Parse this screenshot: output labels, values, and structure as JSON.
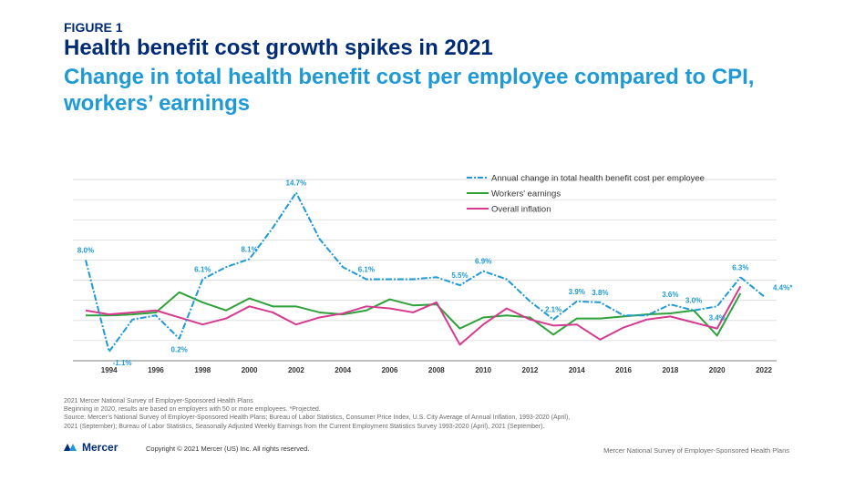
{
  "header": {
    "figure_label": "FIGURE 1",
    "title": "Health benefit cost growth spikes in 2021",
    "subtitle": "Change in total health benefit cost per employee compared to CPI, workers’ earnings"
  },
  "chart_data": {
    "type": "line",
    "ylim": [
      -2,
      17
    ],
    "xlim": [
      1993,
      2022
    ],
    "grid": true,
    "legend_position": "top-right",
    "x_ticks": [
      "1994",
      "1996",
      "1998",
      "2000",
      "2002",
      "2004",
      "2006",
      "2008",
      "2010",
      "2012",
      "2014",
      "2016",
      "2018",
      "2020",
      "2022"
    ],
    "series": [
      {
        "name": "Annual change in total health benefit cost per employee",
        "color": "#1f9ad6",
        "style": "dash-dot",
        "x": [
          1993,
          1994,
          1995,
          1996,
          1997,
          1998,
          1999,
          2000,
          2001,
          2002,
          2003,
          2004,
          2005,
          2006,
          2007,
          2008,
          2009,
          2010,
          2011,
          2012,
          2013,
          2014,
          2015,
          2016,
          2017,
          2018,
          2019,
          2020,
          2021
        ],
        "values": [
          8.0,
          -1.1,
          2.1,
          2.5,
          0.2,
          6.1,
          7.3,
          8.1,
          11.2,
          14.7,
          10.1,
          7.3,
          6.1,
          6.1,
          6.1,
          6.3,
          5.5,
          6.9,
          6.1,
          3.9,
          2.1,
          3.9,
          3.8,
          2.5,
          2.5,
          3.6,
          3.0,
          3.4,
          6.3
        ]
      },
      {
        "name": "Workers' earnings",
        "color": "#2ea13b",
        "style": "solid",
        "x": [
          1993,
          1994,
          1995,
          1996,
          1997,
          1998,
          1999,
          2000,
          2001,
          2002,
          2003,
          2004,
          2005,
          2006,
          2007,
          2008,
          2009,
          2010,
          2011,
          2012,
          2013,
          2014,
          2015,
          2016,
          2017,
          2018,
          2019,
          2020,
          2021
        ],
        "values": [
          2.5,
          2.5,
          2.6,
          2.8,
          4.8,
          3.8,
          3.0,
          4.2,
          3.4,
          3.4,
          2.8,
          2.6,
          3.0,
          4.1,
          3.5,
          3.6,
          1.2,
          2.3,
          2.5,
          2.3,
          0.6,
          2.2,
          2.2,
          2.4,
          2.6,
          2.7,
          3.0,
          0.5,
          4.7
        ]
      },
      {
        "name": "Overall inflation",
        "color": "#d63a8f",
        "style": "solid",
        "x": [
          1993,
          1994,
          1995,
          1996,
          1997,
          1998,
          1999,
          2000,
          2001,
          2002,
          2003,
          2004,
          2005,
          2006,
          2007,
          2008,
          2009,
          2010,
          2011,
          2012,
          2013,
          2014,
          2015,
          2016,
          2017,
          2018,
          2019,
          2020,
          2021
        ],
        "values": [
          3.0,
          2.6,
          2.8,
          3.0,
          2.3,
          1.6,
          2.2,
          3.4,
          2.8,
          1.6,
          2.3,
          2.7,
          3.4,
          3.2,
          2.8,
          3.8,
          -0.4,
          1.6,
          3.2,
          2.1,
          1.5,
          1.6,
          0.1,
          1.3,
          2.1,
          2.4,
          1.8,
          1.2,
          5.4
        ]
      }
    ],
    "projected": {
      "x": [
        2021,
        2022
      ],
      "values": [
        6.3,
        4.4
      ]
    },
    "annotations": [
      {
        "x": 1993,
        "y": 8.0,
        "text": "8.0%"
      },
      {
        "x": 1994,
        "y": -1.1,
        "text": "-1.1%"
      },
      {
        "x": 1997,
        "y": 0.2,
        "text": "0.2%"
      },
      {
        "x": 1998,
        "y": 6.1,
        "text": "6.1%"
      },
      {
        "x": 2000,
        "y": 8.1,
        "text": "8.1%"
      },
      {
        "x": 2002,
        "y": 14.7,
        "text": "14.7%"
      },
      {
        "x": 2005,
        "y": 6.1,
        "text": "6.1%"
      },
      {
        "x": 2009,
        "y": 5.5,
        "text": "5.5%"
      },
      {
        "x": 2010,
        "y": 6.9,
        "text": "6.9%"
      },
      {
        "x": 2013,
        "y": 2.1,
        "text": "2.1%"
      },
      {
        "x": 2014,
        "y": 3.9,
        "text": "3.9%"
      },
      {
        "x": 2015,
        "y": 3.8,
        "text": "3.8%"
      },
      {
        "x": 2018,
        "y": 3.6,
        "text": "3.6%"
      },
      {
        "x": 2019,
        "y": 3.0,
        "text": "3.0%"
      },
      {
        "x": 2020,
        "y": 3.4,
        "text": "3.4%"
      },
      {
        "x": 2021,
        "y": 6.3,
        "text": "6.3%"
      },
      {
        "x": 2022,
        "y": 4.4,
        "text": "4.4%*"
      }
    ]
  },
  "footnotes": {
    "line1": "2021 Mercer National Survey of Employer-Sponsored Health Plans",
    "line2": "Beginning in 2020, results are based on employers with 50 or more employees. *Projected.",
    "line3": "Source: Mercer’s National Survey of Employer-Sponsored Health Plans; Bureau of Labor Statistics, Consumer Price Index, U.S. City Average of Annual Inflation, 1993-2020 (April),",
    "line4": "2021 (September); Bureau of Labor Statistics, Seasonally Adjusted Weekly Earnings from the Current Employment  Statistics Survey 1993-2020 (April), 2021 (September)."
  },
  "footer": {
    "logo_text": "Mercer",
    "copyright": "Copyright © 2021 Mercer (US) Inc. All rights reserved.",
    "right_text": "Mercer National Survey of Employer-Sponsored Health Plans"
  }
}
